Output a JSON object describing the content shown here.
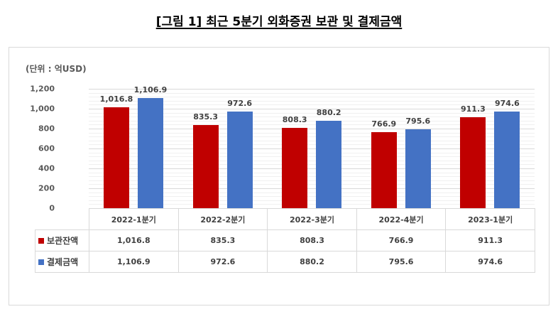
{
  "title": "[그림 1] 최근 5분기 외화증권 보관 및 결제금액",
  "unit_label": "(단위 : 억USD)",
  "colors": {
    "보관잔액": "#C00000",
    "결제금액": "#4472C4"
  },
  "y_ticks": [
    "1,200",
    "1,000",
    "800",
    "600",
    "400",
    "200",
    "0"
  ],
  "table": {
    "headers": [
      "2022-1분기",
      "2022-2분기",
      "2022-3분기",
      "2022-4분기",
      "2023-1분기"
    ],
    "rows": [
      {
        "legend": "보관잔액",
        "values": [
          "1,016.8",
          "835.3",
          "808.3",
          "766.9",
          "911.3"
        ]
      },
      {
        "legend": "결제금액",
        "values": [
          "1,106.9",
          "972.6",
          "880.2",
          "795.6",
          "974.6"
        ]
      }
    ]
  },
  "chart_data": {
    "type": "bar",
    "title": "[그림 1] 최근 5분기 외화증권 보관 및 결제금액",
    "xlabel": "",
    "ylabel": "(단위 : 억USD)",
    "categories": [
      "2022-1분기",
      "2022-2분기",
      "2022-3분기",
      "2022-4분기",
      "2023-1분기"
    ],
    "series": [
      {
        "name": "보관잔액",
        "color": "#C00000",
        "values": [
          1016.8,
          835.3,
          808.3,
          766.9,
          911.3
        ]
      },
      {
        "name": "결제금액",
        "color": "#4472C4",
        "values": [
          1106.9,
          972.6,
          880.2,
          795.6,
          974.6
        ]
      }
    ],
    "ylim": [
      0,
      1200
    ],
    "yticks": [
      0,
      200,
      400,
      600,
      800,
      1000,
      1200
    ],
    "grid": true,
    "legend_position": "data-table",
    "data_labels": true
  }
}
